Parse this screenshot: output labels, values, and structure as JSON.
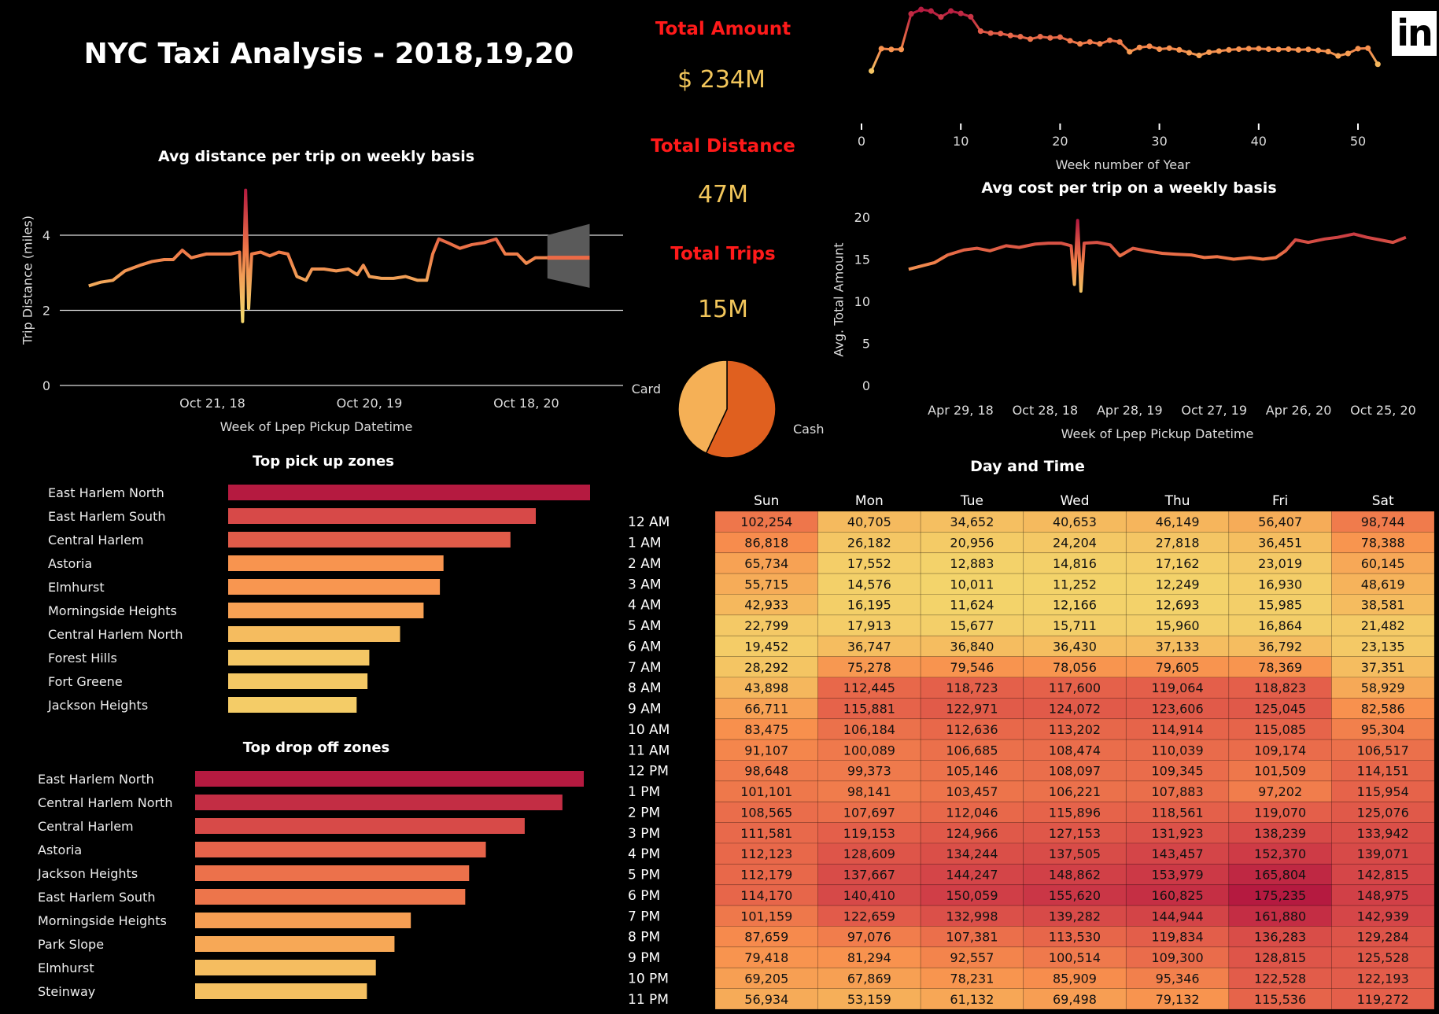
{
  "header": {
    "title": "NYC Taxi Analysis - 2018,19,20",
    "logo": "in"
  },
  "kpis": [
    {
      "label": "Total Amount",
      "value": "$ 234M"
    },
    {
      "label": "Total Distance",
      "value": "47M"
    },
    {
      "label": "Total Trips",
      "value": "15M"
    }
  ],
  "colors": {
    "low": "#f3d46b",
    "mid": "#f88f4d",
    "high": "#b51a40",
    "kpi_label": "#ff1a1a",
    "kpi_value": "#f2c65b",
    "forecast_band": "#5a5a5a"
  },
  "chart_data": [
    {
      "id": "distance",
      "type": "line",
      "title": "Avg distance per trip on weekly basis",
      "xlabel": "Week of Lpep Pickup Datetime",
      "ylabel": "Trip Distance (miles)",
      "ylim": [
        0,
        5.2
      ],
      "yticks": [
        "0",
        "2",
        "4"
      ],
      "xticks": [
        {
          "date": "2018-10-21",
          "label": "Oct 21, 18"
        },
        {
          "date": "2019-10-20",
          "label": "Oct 20, 19"
        },
        {
          "date": "2020-10-18",
          "label": "Oct 18, 20"
        }
      ],
      "grid": true,
      "points": [
        [
          "2018-01-07",
          2.65
        ],
        [
          "2018-02-04",
          2.75
        ],
        [
          "2018-03-04",
          2.8
        ],
        [
          "2018-04-01",
          3.05
        ],
        [
          "2018-05-06",
          3.2
        ],
        [
          "2018-06-03",
          3.3
        ],
        [
          "2018-07-01",
          3.35
        ],
        [
          "2018-07-22",
          3.35
        ],
        [
          "2018-08-12",
          3.6
        ],
        [
          "2018-09-02",
          3.4
        ],
        [
          "2018-10-07",
          3.5
        ],
        [
          "2018-11-04",
          3.5
        ],
        [
          "2018-12-02",
          3.5
        ],
        [
          "2018-12-23",
          3.55
        ],
        [
          "2018-12-30",
          1.7
        ],
        [
          "2019-01-06",
          5.2
        ],
        [
          "2019-01-13",
          2.05
        ],
        [
          "2019-01-20",
          3.5
        ],
        [
          "2019-02-10",
          3.55
        ],
        [
          "2019-03-03",
          3.45
        ],
        [
          "2019-03-24",
          3.55
        ],
        [
          "2019-04-14",
          3.5
        ],
        [
          "2019-05-05",
          2.9
        ],
        [
          "2019-05-26",
          2.8
        ],
        [
          "2019-06-09",
          3.1
        ],
        [
          "2019-07-07",
          3.1
        ],
        [
          "2019-08-04",
          3.05
        ],
        [
          "2019-09-01",
          3.1
        ],
        [
          "2019-09-22",
          2.95
        ],
        [
          "2019-10-06",
          3.2
        ],
        [
          "2019-10-20",
          2.9
        ],
        [
          "2019-11-17",
          2.85
        ],
        [
          "2019-12-15",
          2.85
        ],
        [
          "2020-01-12",
          2.9
        ],
        [
          "2020-02-09",
          2.8
        ],
        [
          "2020-03-01",
          2.8
        ],
        [
          "2020-03-15",
          3.5
        ],
        [
          "2020-03-29",
          3.9
        ],
        [
          "2020-04-19",
          3.8
        ],
        [
          "2020-05-17",
          3.65
        ],
        [
          "2020-06-14",
          3.75
        ],
        [
          "2020-07-12",
          3.8
        ],
        [
          "2020-08-09",
          3.9
        ],
        [
          "2020-08-30",
          3.5
        ],
        [
          "2020-09-27",
          3.5
        ],
        [
          "2020-10-18",
          3.25
        ],
        [
          "2020-11-08",
          3.4
        ],
        [
          "2020-12-06",
          3.4
        ]
      ],
      "forecast": {
        "start": "2020-12-06",
        "end": "2021-03-14",
        "value": 3.4,
        "band_start": [
          2.85,
          4.0
        ],
        "band_end": [
          2.6,
          4.3
        ]
      }
    },
    {
      "id": "weekly_amount",
      "type": "line",
      "xlabel": "Week number of Year",
      "xlim": [
        0,
        55
      ],
      "xticks": [
        "0",
        "10",
        "20",
        "30",
        "40",
        "50"
      ],
      "y_axis_shown": false,
      "weeks": [
        1,
        2,
        3,
        4,
        5,
        6,
        7,
        8,
        9,
        10,
        11,
        12,
        13,
        14,
        15,
        16,
        17,
        18,
        19,
        20,
        21,
        22,
        23,
        24,
        25,
        26,
        27,
        28,
        29,
        30,
        31,
        32,
        33,
        34,
        35,
        36,
        37,
        38,
        39,
        40,
        41,
        42,
        43,
        44,
        45,
        46,
        47,
        48,
        49,
        50,
        51,
        52
      ],
      "values": [
        3.2,
        12.5,
        12.2,
        12.2,
        27,
        28.8,
        28.2,
        25.7,
        28.2,
        27.2,
        25.8,
        19.8,
        19,
        18.8,
        18,
        17.5,
        16.5,
        17.5,
        17,
        17.3,
        15.8,
        14.5,
        15.3,
        14.5,
        16,
        15.3,
        11.2,
        13,
        13.5,
        12.3,
        12.7,
        12,
        10.8,
        9.7,
        11,
        11.5,
        12,
        12.3,
        12.5,
        12.5,
        12.3,
        12.2,
        12.3,
        12,
        12.2,
        11.8,
        11.3,
        9.5,
        10.5,
        12.5,
        12.7,
        6
      ]
    },
    {
      "id": "cost",
      "type": "line",
      "title": "Avg cost per trip on a weekly basis",
      "xlabel": "Week of Lpep Pickup Datetime",
      "ylabel": "Avg. Total Amount",
      "ylim": [
        0,
        20
      ],
      "yticks": [
        "0",
        "5",
        "10",
        "15",
        "20"
      ],
      "xticks": [
        {
          "date": "2018-04-29",
          "label": "Apr 29, 18"
        },
        {
          "date": "2018-10-28",
          "label": "Oct 28, 18"
        },
        {
          "date": "2019-04-28",
          "label": "Apr 28, 19"
        },
        {
          "date": "2019-10-27",
          "label": "Oct 27, 19"
        },
        {
          "date": "2020-04-26",
          "label": "Apr 26, 20"
        },
        {
          "date": "2020-10-25",
          "label": "Oct 25, 20"
        }
      ],
      "points": [
        [
          "2018-01-07",
          13.8
        ],
        [
          "2018-02-04",
          14.2
        ],
        [
          "2018-03-04",
          14.6
        ],
        [
          "2018-04-01",
          15.5
        ],
        [
          "2018-05-06",
          16.1
        ],
        [
          "2018-06-03",
          16.3
        ],
        [
          "2018-07-01",
          16
        ],
        [
          "2018-08-05",
          16.6
        ],
        [
          "2018-09-02",
          16.4
        ],
        [
          "2018-10-07",
          16.8
        ],
        [
          "2018-11-04",
          16.9
        ],
        [
          "2018-12-02",
          16.9
        ],
        [
          "2018-12-23",
          16.6
        ],
        [
          "2018-12-30",
          12
        ],
        [
          "2019-01-06",
          19.6
        ],
        [
          "2019-01-13",
          11.2
        ],
        [
          "2019-01-20",
          16.9
        ],
        [
          "2019-02-17",
          17
        ],
        [
          "2019-03-17",
          16.7
        ],
        [
          "2019-04-07",
          15.4
        ],
        [
          "2019-05-05",
          16.3
        ],
        [
          "2019-06-02",
          16
        ],
        [
          "2019-07-07",
          15.7
        ],
        [
          "2019-08-04",
          15.6
        ],
        [
          "2019-09-08",
          15.5
        ],
        [
          "2019-10-06",
          15.2
        ],
        [
          "2019-11-03",
          15.3
        ],
        [
          "2019-12-08",
          15
        ],
        [
          "2020-01-12",
          15.2
        ],
        [
          "2020-02-09",
          15
        ],
        [
          "2020-03-08",
          15.2
        ],
        [
          "2020-03-29",
          16
        ],
        [
          "2020-04-19",
          17.3
        ],
        [
          "2020-05-17",
          17
        ],
        [
          "2020-06-21",
          17.4
        ],
        [
          "2020-07-19",
          17.6
        ],
        [
          "2020-08-23",
          18
        ],
        [
          "2020-09-20",
          17.6
        ],
        [
          "2020-10-18",
          17.3
        ],
        [
          "2020-11-15",
          17
        ],
        [
          "2020-12-13",
          17.6
        ]
      ]
    },
    {
      "id": "payment",
      "type": "pie",
      "slices": [
        {
          "label": "Cash",
          "value": 57,
          "color": "#e0601f"
        },
        {
          "label": "Card",
          "value": 43,
          "color": "#f5b056"
        }
      ]
    },
    {
      "id": "pickup",
      "type": "bar",
      "title": "Top pick up zones",
      "categories": [
        "East Harlem North",
        "East Harlem South",
        "Central Harlem",
        "Astoria",
        "Elmhurst",
        "Morningside Heights",
        "Central Harlem North",
        "Forest Hills",
        "Fort Greene",
        "Jackson Heights"
      ],
      "values": [
        100,
        85,
        78,
        59.5,
        58.5,
        54,
        47.5,
        39,
        38.5,
        35.5
      ]
    },
    {
      "id": "dropoff",
      "type": "bar",
      "title": "Top drop off zones",
      "categories": [
        "East Harlem North",
        "Central Harlem North",
        "Central Harlem",
        "Astoria",
        "Jackson Heights",
        "East Harlem South",
        "Morningside Heights",
        "Park Slope",
        "Elmhurst",
        "Steinway"
      ],
      "values": [
        100,
        94.5,
        84.8,
        74.8,
        70.5,
        69.5,
        55.5,
        51.3,
        46.5,
        44.2
      ]
    },
    {
      "id": "heatmap",
      "type": "heatmap",
      "title": "Day and Time",
      "columns": [
        "Sun",
        "Mon",
        "Tue",
        "Wed",
        "Thu",
        "Fri",
        "Sat"
      ],
      "rows": [
        "12 AM",
        "1 AM",
        "2 AM",
        "3 AM",
        "4 AM",
        "5 AM",
        "6 AM",
        "7 AM",
        "8 AM",
        "9 AM",
        "10 AM",
        "11 AM",
        "12 PM",
        "1 PM",
        "2 PM",
        "3 PM",
        "4 PM",
        "5 PM",
        "6 PM",
        "7 PM",
        "8 PM",
        "9 PM",
        "10 PM",
        "11 PM"
      ],
      "values": [
        [
          "102,254",
          "40,705",
          "34,652",
          "40,653",
          "46,149",
          "56,407",
          "98,744"
        ],
        [
          "86,818",
          "26,182",
          "20,956",
          "24,204",
          "27,818",
          "36,451",
          "78,388"
        ],
        [
          "65,734",
          "17,552",
          "12,883",
          "14,816",
          "17,162",
          "23,019",
          "60,145"
        ],
        [
          "55,715",
          "14,576",
          "10,011",
          "11,252",
          "12,249",
          "16,930",
          "48,619"
        ],
        [
          "42,933",
          "16,195",
          "11,624",
          "12,166",
          "12,693",
          "15,985",
          "38,581"
        ],
        [
          "22,799",
          "17,913",
          "15,677",
          "15,711",
          "15,960",
          "16,864",
          "21,482"
        ],
        [
          "19,452",
          "36,747",
          "36,840",
          "36,430",
          "37,133",
          "36,792",
          "23,135"
        ],
        [
          "28,292",
          "75,278",
          "79,546",
          "78,056",
          "79,605",
          "78,369",
          "37,351"
        ],
        [
          "43,898",
          "112,445",
          "118,723",
          "117,600",
          "119,064",
          "118,823",
          "58,929"
        ],
        [
          "66,711",
          "115,881",
          "122,971",
          "124,072",
          "123,606",
          "125,045",
          "82,586"
        ],
        [
          "83,475",
          "106,184",
          "112,636",
          "113,202",
          "114,914",
          "115,085",
          "95,304"
        ],
        [
          "91,107",
          "100,089",
          "106,685",
          "108,474",
          "110,039",
          "109,174",
          "106,517"
        ],
        [
          "98,648",
          "99,373",
          "105,146",
          "108,097",
          "109,345",
          "101,509",
          "114,151"
        ],
        [
          "101,101",
          "98,141",
          "103,457",
          "106,221",
          "107,883",
          "97,202",
          "115,954"
        ],
        [
          "108,565",
          "107,697",
          "112,046",
          "115,896",
          "118,561",
          "119,070",
          "125,076"
        ],
        [
          "111,581",
          "119,153",
          "124,966",
          "127,153",
          "131,923",
          "138,239",
          "133,942"
        ],
        [
          "112,123",
          "128,609",
          "134,244",
          "137,505",
          "143,457",
          "152,370",
          "139,071"
        ],
        [
          "112,179",
          "137,667",
          "144,247",
          "148,862",
          "153,979",
          "165,804",
          "142,815"
        ],
        [
          "114,170",
          "140,410",
          "150,059",
          "155,620",
          "160,825",
          "175,235",
          "148,975"
        ],
        [
          "101,159",
          "122,659",
          "132,998",
          "139,282",
          "144,944",
          "161,880",
          "142,939"
        ],
        [
          "87,659",
          "97,076",
          "107,381",
          "113,530",
          "119,834",
          "136,283",
          "129,284"
        ],
        [
          "79,418",
          "81,294",
          "92,557",
          "100,514",
          "109,300",
          "128,815",
          "125,528"
        ],
        [
          "69,205",
          "67,869",
          "78,231",
          "85,909",
          "95,346",
          "122,528",
          "122,193"
        ],
        [
          "56,934",
          "53,159",
          "61,132",
          "69,498",
          "79,132",
          "115,536",
          "119,272"
        ]
      ]
    }
  ]
}
